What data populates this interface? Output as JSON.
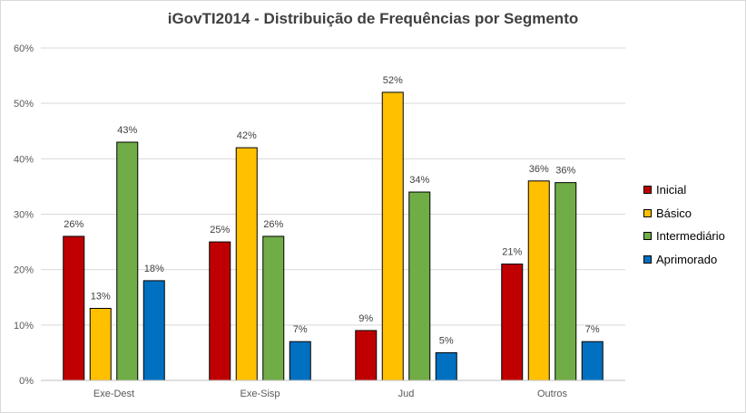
{
  "chart_data": {
    "type": "bar",
    "title": "iGovTI2014 - Distribuição de Frequências por Segmento",
    "categories": [
      "Exe-Dest",
      "Exe-Sisp",
      "Jud",
      "Outros"
    ],
    "series": [
      {
        "name": "Inicial",
        "color": "#c00000",
        "values": [
          26,
          25,
          9,
          21
        ],
        "labels": [
          "26%",
          "25%",
          "9%",
          "21%"
        ]
      },
      {
        "name": "Básico",
        "color": "#ffc000",
        "values": [
          13,
          42,
          52,
          36
        ],
        "labels": [
          "13%",
          "42%",
          "52%",
          "36%"
        ]
      },
      {
        "name": "Intermediário",
        "color": "#70ad47",
        "values": [
          43,
          26,
          34,
          35.7
        ],
        "labels": [
          "43%",
          "26%",
          "34%",
          "36%"
        ]
      },
      {
        "name": "Aprimorado",
        "color": "#0070c0",
        "values": [
          18,
          7,
          5,
          7
        ],
        "labels": [
          "18%",
          "7%",
          "5%",
          "7%"
        ]
      }
    ],
    "ylim": [
      0,
      60
    ],
    "yticks": [
      0,
      10,
      20,
      30,
      40,
      50,
      60
    ],
    "ytick_labels": [
      "0%",
      "10%",
      "20%",
      "30%",
      "40%",
      "50%",
      "60%"
    ],
    "xlabel": "",
    "ylabel": "",
    "grid": true,
    "legend_position": "right"
  }
}
